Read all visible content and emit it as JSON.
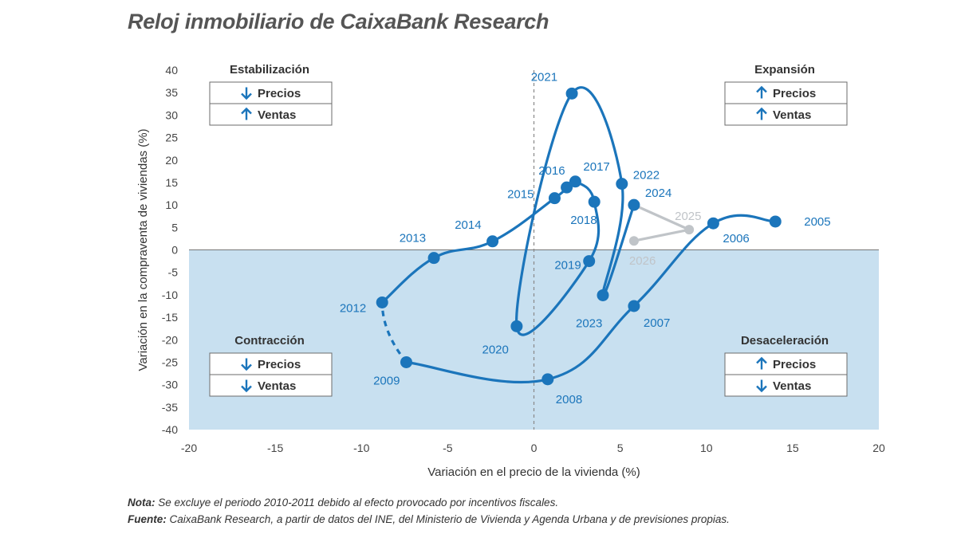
{
  "title": "Reloj inmobiliario de CaixaBank Research",
  "notes": {
    "nota_label": "Nota:",
    "nota_text": " Se excluye el periodo 2010-2011 debido al efecto provocado por incentivos fiscales.",
    "fuente_label": "Fuente:",
    "fuente_text": " CaixaBank Research, a partir de datos del INE, del Ministerio de Vivienda y Agenda Urbana y de previsiones propias."
  },
  "quadrants": [
    {
      "id": "estabilizacion",
      "title": "Estabilización",
      "rows": [
        {
          "arrow": "down",
          "label": "Precios"
        },
        {
          "arrow": "up",
          "label": "Ventas"
        }
      ]
    },
    {
      "id": "expansion",
      "title": "Expansión",
      "rows": [
        {
          "arrow": "up",
          "label": "Precios"
        },
        {
          "arrow": "up",
          "label": "Ventas"
        }
      ]
    },
    {
      "id": "contraccion",
      "title": "Contracción",
      "rows": [
        {
          "arrow": "down",
          "label": "Precios"
        },
        {
          "arrow": "down",
          "label": "Ventas"
        }
      ]
    },
    {
      "id": "desaceleracion",
      "title": "Desaceleración",
      "rows": [
        {
          "arrow": "up",
          "label": "Precios"
        },
        {
          "arrow": "down",
          "label": "Ventas"
        }
      ]
    }
  ],
  "colors": {
    "series": "#1b75bb",
    "forecast": "#c0c4c8",
    "negative_zone": "#c8e0f0",
    "arrow": "#1b75bb"
  },
  "chart_data": {
    "type": "scatter",
    "xlabel": "Variación en el precio de la vivienda (%)",
    "ylabel": "Variación en la compraventa de viviendas (%)",
    "xlim": [
      -20,
      20
    ],
    "ylim": [
      -40,
      40
    ],
    "xticks": [
      -20,
      -15,
      -10,
      -5,
      0,
      5,
      10,
      15,
      20
    ],
    "yticks": [
      40,
      35,
      30,
      25,
      20,
      15,
      10,
      5,
      0,
      -5,
      -10,
      -15,
      -20,
      -25,
      -30,
      -35,
      -40
    ],
    "shaded_region": "y < 0",
    "series": [
      {
        "points": [
          {
            "year": "2005",
            "x": 14.0,
            "y": 6.3
          },
          {
            "year": "2006",
            "x": 10.4,
            "y": 5.9
          },
          {
            "year": "2007",
            "x": 5.8,
            "y": -12.5
          },
          {
            "year": "2008",
            "x": 0.8,
            "y": -28.8
          },
          {
            "year": "2009",
            "x": -7.4,
            "y": -25.0
          },
          {
            "year": "2012",
            "x": -8.8,
            "y": -11.7
          },
          {
            "year": "2013",
            "x": -5.8,
            "y": -1.8
          },
          {
            "year": "2014",
            "x": -2.4,
            "y": 1.9
          },
          {
            "year": "2015",
            "x": 1.2,
            "y": 11.5
          },
          {
            "year": "2016",
            "x": 1.9,
            "y": 13.9
          },
          {
            "year": "2017",
            "x": 2.4,
            "y": 15.2
          },
          {
            "year": "2018",
            "x": 3.5,
            "y": 10.7
          },
          {
            "year": "2019",
            "x": 3.2,
            "y": -2.5
          },
          {
            "year": "2020",
            "x": -1.0,
            "y": -17.0
          },
          {
            "year": "2021",
            "x": 2.2,
            "y": 34.8
          },
          {
            "year": "2022",
            "x": 5.1,
            "y": 14.7
          },
          {
            "year": "2023",
            "x": 4.0,
            "y": -10.1
          },
          {
            "year": "2024",
            "x": 5.8,
            "y": 10.0
          }
        ]
      },
      {
        "points": [
          {
            "year": "2024",
            "x": 5.8,
            "y": 10.0
          },
          {
            "year": "2025",
            "x": 9.0,
            "y": 4.5
          },
          {
            "year": "2026",
            "x": 5.8,
            "y": 2.0
          }
        ]
      }
    ]
  }
}
